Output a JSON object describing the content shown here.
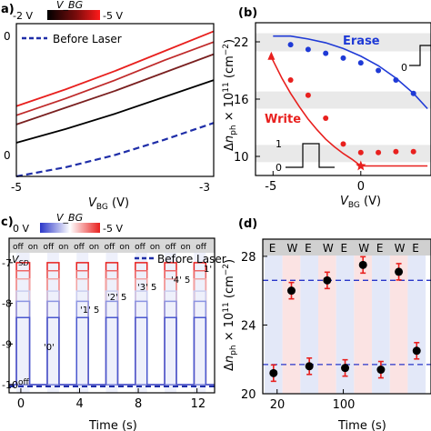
{
  "panel_labels": {
    "a": "a)",
    "b": "(b)",
    "c": "c)",
    "d": "(d)"
  },
  "colors": {
    "red": "#e8201e",
    "blue": "#2a36c9",
    "navy": "#1a2f8f",
    "black": "#000000",
    "band_gray": "#e9e9e9",
    "pink_band": "#fbe3e3",
    "blue_band": "#e3e8f8",
    "dashed_blue": "#1f2ea8"
  },
  "chart_data": [
    {
      "id": "a",
      "type": "line",
      "colorbar": {
        "left_label": "-2 V",
        "title": "V_BG",
        "right_label": "-5 V"
      },
      "legend": {
        "label": "Before Laser",
        "placement": "top-left"
      },
      "xlabel": "V_BG (V)",
      "xlim": [
        -5,
        -3
      ],
      "xticks": [
        "-5",
        "-3"
      ],
      "yticks": [
        "0",
        "0"
      ],
      "series": [
        {
          "color": "#e8201e",
          "x": [
            -5,
            -4.5,
            -4,
            -3.5,
            -3
          ],
          "y": [
            0.46,
            0.57,
            0.69,
            0.82,
            0.95
          ]
        },
        {
          "color": "#c02b2b",
          "x": [
            -5,
            -4.5,
            -4,
            -3.5,
            -3
          ],
          "y": [
            0.4,
            0.51,
            0.63,
            0.76,
            0.88
          ]
        },
        {
          "color": "#7a2020",
          "x": [
            -5,
            -4.5,
            -4,
            -3.5,
            -3
          ],
          "y": [
            0.34,
            0.45,
            0.56,
            0.68,
            0.8
          ]
        },
        {
          "color": "#000000",
          "x": [
            -5,
            -4.5,
            -4,
            -3.5,
            -3
          ],
          "y": [
            0.22,
            0.31,
            0.41,
            0.52,
            0.63
          ]
        },
        {
          "color": "#1f2ea8",
          "dashed": true,
          "name": "Before Laser",
          "x": [
            -5,
            -4.5,
            -4,
            -3.5,
            -3
          ],
          "y": [
            0.0,
            0.06,
            0.14,
            0.24,
            0.35
          ]
        }
      ]
    },
    {
      "id": "b",
      "type": "scatter",
      "xlabel": "V_BG (V)",
      "ylabel": "Δn_ph × 10^11 (cm^-2)",
      "xlim": [
        -6,
        4
      ],
      "ylim": [
        8,
        24
      ],
      "xticks": [
        -5,
        0
      ],
      "yticks": [
        10,
        16,
        22
      ],
      "annotations": {
        "erase": "Erase",
        "write": "Write",
        "inset_top_zero": "0",
        "inset_bottom_one": "1",
        "inset_bottom_zero": "0"
      },
      "series": [
        {
          "name": "Erase",
          "color": "#1f3ad6",
          "x": [
            -4,
            -3,
            -2,
            -1,
            0,
            1,
            2,
            3
          ],
          "y": [
            21.7,
            21.2,
            20.8,
            20.3,
            19.8,
            19.0,
            18.0,
            16.6
          ]
        },
        {
          "name": "Write",
          "color": "#e8201e",
          "x": [
            -4,
            -3,
            -2,
            -1,
            0,
            1,
            2,
            3
          ],
          "y": [
            18.0,
            16.4,
            14.0,
            11.3,
            10.4,
            10.4,
            10.5,
            10.5
          ]
        }
      ],
      "erase_fit": {
        "x": [
          -5,
          -4,
          -3,
          -2,
          -1,
          0,
          1,
          2,
          3,
          3.8
        ],
        "y": [
          22.6,
          22.6,
          22.3,
          21.9,
          21.3,
          20.5,
          19.5,
          18.2,
          16.6,
          15.0
        ]
      },
      "write_fit": {
        "x": [
          -5.1,
          -4.5,
          -4,
          -3.5,
          -3,
          -2.5,
          -2,
          -1.5,
          -1,
          -0.5,
          0,
          1,
          2,
          3,
          3.8
        ],
        "y": [
          20.4,
          18.2,
          16.6,
          15.2,
          13.9,
          12.8,
          11.8,
          11.0,
          10.3,
          9.7,
          9.0,
          9.0,
          9.0,
          9.0,
          9.0
        ]
      }
    },
    {
      "id": "c",
      "type": "line",
      "colorbar": {
        "left_label": "0 V",
        "title": "V_BG",
        "right_label": "-5 V"
      },
      "legend": {
        "label": "Before Laser",
        "placement": "top-right"
      },
      "onoff_labels": [
        "off",
        "on",
        "off",
        "on",
        "off",
        "on",
        "off",
        "on",
        "off",
        "on",
        "off",
        "on",
        "off"
      ],
      "state_labels": {
        "v_sd": "V_SD",
        "zero": "'0'",
        "one5": "'1' 5",
        "two5": "'2' 5",
        "three5": "'3' 5",
        "four5": "'4' 5",
        "one_prime": "1'",
        "off": "off"
      },
      "xlabel": "Time (s)",
      "xlim": [
        -0.8,
        13.2
      ],
      "xticks": [
        0,
        4,
        8,
        12
      ],
      "ylim": [
        -10.2,
        -6.4
      ],
      "yticks": [
        -7,
        -8,
        -9,
        -10
      ],
      "pulses": [
        [
          -0.3,
          0.6
        ],
        [
          1.8,
          2.6
        ],
        [
          3.8,
          4.6
        ],
        [
          5.8,
          6.6
        ],
        [
          7.8,
          8.6
        ],
        [
          9.8,
          10.6
        ],
        [
          11.8,
          12.6
        ]
      ],
      "levels": [
        {
          "color": "#e8201e",
          "value": -7.0
        },
        {
          "color": "#ee6a6a",
          "value": -7.2
        },
        {
          "color": "#f2a3a3",
          "value": -7.4
        },
        {
          "color": "#c9cdf0",
          "value": -7.7
        },
        {
          "color": "#8c95e2",
          "value": -7.95
        },
        {
          "color": "#4a58cf",
          "value": -8.35
        }
      ],
      "baseline": -10.0
    },
    {
      "id": "d",
      "type": "scatter",
      "xlabel": "Time (s)",
      "ylabel": "Δn_ph × 10^11 (cm^-2)",
      "ylim": [
        20,
        29
      ],
      "yticks": [
        20,
        24,
        28
      ],
      "xticks": [
        "20",
        "100"
      ],
      "header_labels": [
        "E",
        "W",
        "E",
        "W",
        "E",
        "W",
        "E",
        "W",
        "E"
      ],
      "dashed_levels": [
        26.6,
        21.7
      ],
      "points": [
        {
          "x": 1,
          "y": 21.2
        },
        {
          "x": 2,
          "y": 26.0
        },
        {
          "x": 3,
          "y": 21.6
        },
        {
          "x": 4,
          "y": 26.6
        },
        {
          "x": 5,
          "y": 21.5
        },
        {
          "x": 6,
          "y": 27.5
        },
        {
          "x": 7,
          "y": 21.4
        },
        {
          "x": 8,
          "y": 27.1
        },
        {
          "x": 9,
          "y": 22.5
        }
      ],
      "xlim": [
        0.4,
        9.8
      ]
    }
  ]
}
